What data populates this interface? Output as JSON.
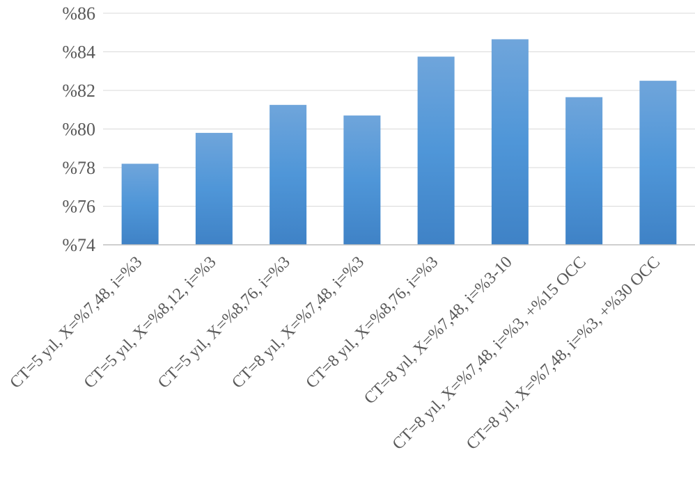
{
  "chart_data": {
    "type": "bar",
    "title": "",
    "xlabel": "",
    "ylabel": "",
    "ylim": [
      74,
      86
    ],
    "yticks": [
      {
        "value": 74,
        "label": "%74"
      },
      {
        "value": 76,
        "label": "%76"
      },
      {
        "value": 78,
        "label": "%78"
      },
      {
        "value": 80,
        "label": "%80"
      },
      {
        "value": 82,
        "label": "%82"
      },
      {
        "value": 84,
        "label": "%84"
      },
      {
        "value": 86,
        "label": "%86"
      }
    ],
    "categories": [
      "CT=5 yıl, X=%7,48, i=%3",
      "CT=5 yıl, X=%8,12, i=%3",
      "CT=5 yıl, X=%8,76, i=%3",
      "CT=8 yıl, X=%7,48, i=%3",
      "CT=8 yıl, X=%8,76, i=%3",
      "CT=8 yıl, X=%7,48, i=%3-10",
      "CT=8 yıl, X=%7,48, i=%3, +%15 OCC",
      "CT=8 yıl, X=%7,48, i=%3, +%30 OCC"
    ],
    "values": [
      78.2,
      79.8,
      81.25,
      80.7,
      83.75,
      84.65,
      81.65,
      82.5
    ],
    "grid": true,
    "legend": "none",
    "colors": {
      "bar_top": "#6fa5db",
      "bar_mid": "#4f96d8",
      "bar_bottom": "#3f82c6",
      "grid": "#d9d9d9",
      "text": "#595959"
    }
  }
}
